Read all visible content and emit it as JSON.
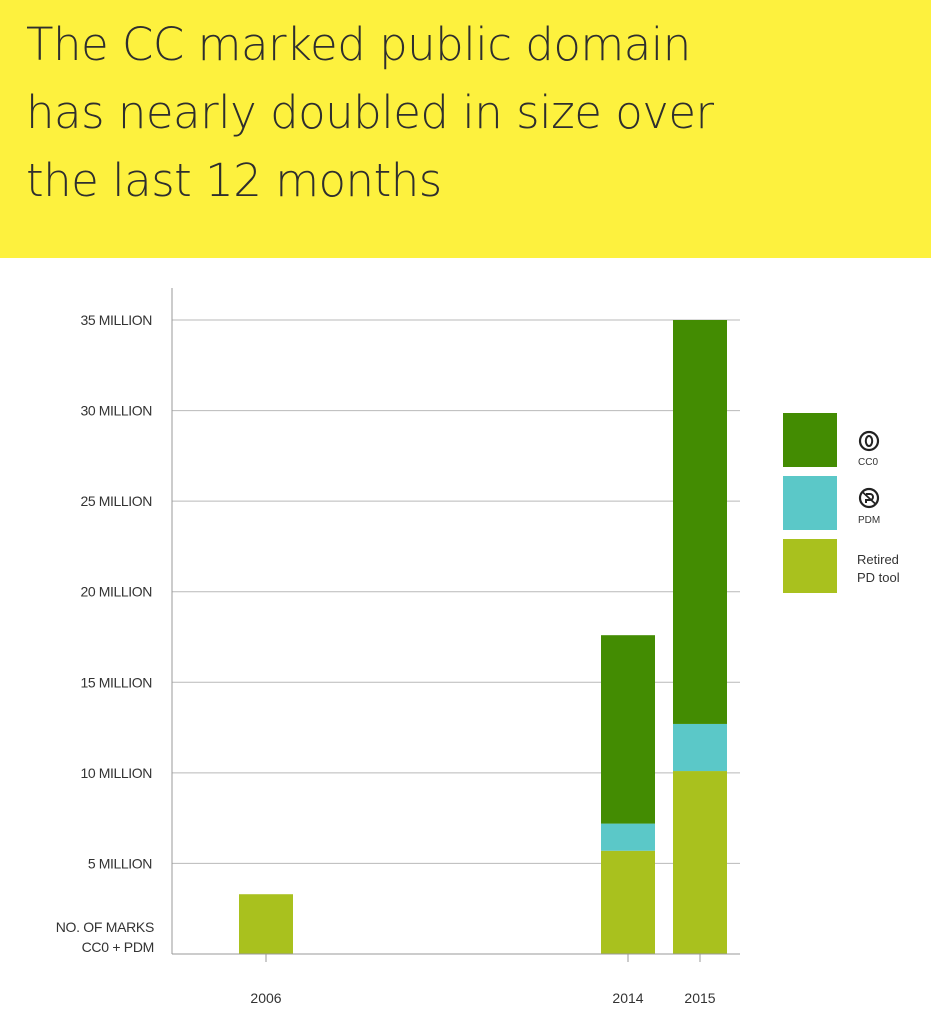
{
  "title_lines": [
    "The CC marked public domain",
    "has nearly doubled in size over",
    "the last 12 months"
  ],
  "chart_data": {
    "type": "bar",
    "stacked": true,
    "categories": [
      "2006",
      "2014",
      "2015"
    ],
    "series": [
      {
        "name": "Retired PD tool",
        "color": "#a9c11e",
        "values": [
          3.3,
          5.7,
          10.1
        ]
      },
      {
        "name": "PDM",
        "color": "#5bc8c8",
        "values": [
          0,
          1.5,
          2.6
        ]
      },
      {
        "name": "CC0",
        "color": "#438c02",
        "values": [
          0,
          10.4,
          22.3
        ]
      }
    ],
    "ylim": [
      0,
      35
    ],
    "yticks": [
      {
        "value": 35,
        "label": "35 MILLION"
      },
      {
        "value": 30,
        "label": "30 MILLION"
      },
      {
        "value": 25,
        "label": "25 MILLION"
      },
      {
        "value": 20,
        "label": "20 MILLION"
      },
      {
        "value": 15,
        "label": "15 MILLION"
      },
      {
        "value": 10,
        "label": "10 MILLION"
      },
      {
        "value": 5,
        "label": "5 MILLION"
      }
    ],
    "ylabel_lines": [
      "NO. OF MARKS",
      "CC0 + PDM"
    ],
    "grid": true,
    "legend_position": "right"
  },
  "legend": [
    {
      "series": "CC0",
      "label": "CC0",
      "icon": "cc-zero-icon",
      "color": "#438c02"
    },
    {
      "series": "PDM",
      "label": "PDM",
      "icon": "public-domain-mark-icon",
      "color": "#5bc8c8"
    },
    {
      "series": "Retired PD tool",
      "label_lines": [
        "Retired",
        "PD tool"
      ],
      "color": "#a9c11e"
    }
  ]
}
